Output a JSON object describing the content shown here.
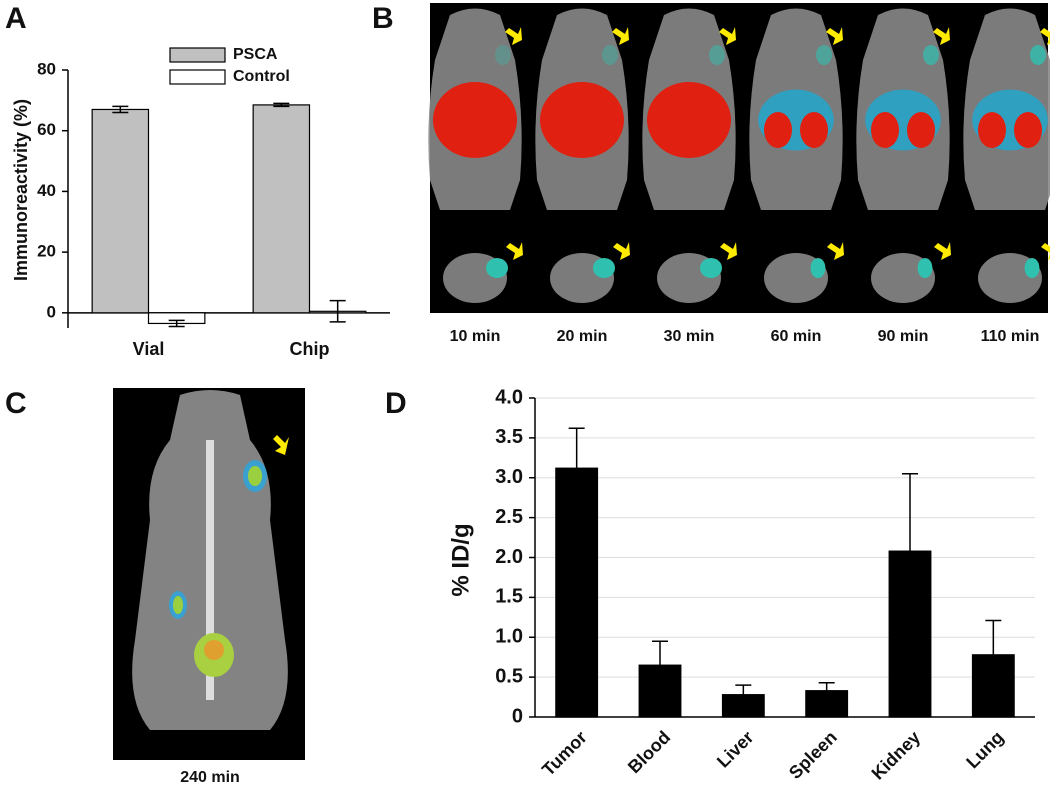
{
  "panel_labels": [
    "A",
    "B",
    "C",
    "D"
  ],
  "images": {
    "b_times": [
      "10 min",
      "20 min",
      "30 min",
      "60 min",
      "90 min",
      "110 min"
    ],
    "c_time": "240 min"
  },
  "chart_data": [
    {
      "type": "bar",
      "ylabel": "Immunoreactivity (%)",
      "categories": [
        "Vial",
        "Chip"
      ],
      "series": [
        {
          "name": "PSCA",
          "color": "#c0c0c0",
          "values": [
            67,
            68.5
          ],
          "errors": [
            1,
            0.5
          ]
        },
        {
          "name": "Control",
          "color": "#ffffff",
          "values": [
            -3.5,
            0.5
          ],
          "errors": [
            1,
            3.5
          ]
        }
      ],
      "ylim": [
        -5,
        80
      ],
      "yticks": [
        0,
        20,
        40,
        60,
        80
      ],
      "grid": false,
      "legend": "top",
      "error_direction": "both"
    },
    {
      "type": "bar",
      "ylabel": "% ID/g",
      "categories": [
        "Tumor",
        "Blood",
        "Liver",
        "Spleen",
        "Kidney",
        "Lung"
      ],
      "values": [
        3.12,
        0.65,
        0.28,
        0.33,
        2.08,
        0.78
      ],
      "errors": [
        0.5,
        0.3,
        0.12,
        0.1,
        0.97,
        0.43
      ],
      "color": "#000000",
      "ylim": [
        0,
        4
      ],
      "yticks": [
        0,
        0.5,
        {
          "value": 1,
          "label": "1.0"
        },
        1.5,
        {
          "value": 2,
          "label": "2.0"
        },
        2.5,
        {
          "value": 3,
          "label": "3.0"
        },
        3.5,
        {
          "value": 4,
          "label": "4.0"
        }
      ],
      "grid": true,
      "error_direction": "up"
    }
  ]
}
